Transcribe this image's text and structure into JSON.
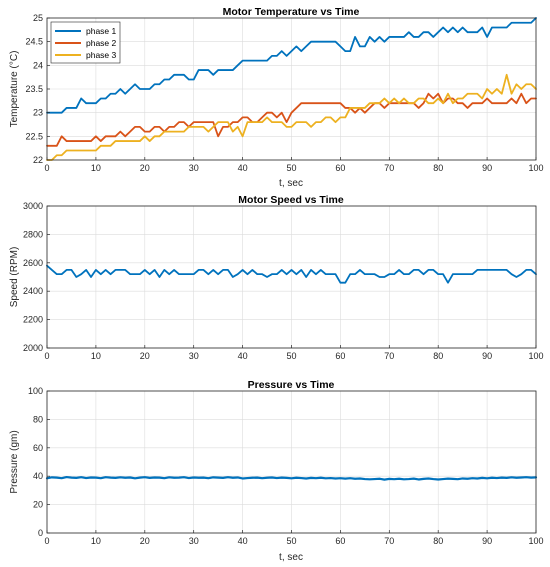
{
  "chart_data": [
    {
      "type": "line",
      "title": "Motor Temperature vs Time",
      "xlabel": "t, sec",
      "ylabel": "Temperature (°C)",
      "xlim": [
        0,
        100
      ],
      "ylim": [
        22,
        25
      ],
      "xticks": [
        0,
        10,
        20,
        30,
        40,
        50,
        60,
        70,
        80,
        90,
        100
      ],
      "yticks": [
        22,
        22.5,
        23,
        23.5,
        24,
        24.5,
        25
      ],
      "ytick_labels": [
        "22",
        "22.5",
        "23",
        "23.5",
        "24",
        "24.5",
        "25"
      ],
      "grid": true,
      "legend": "top-left",
      "series": [
        {
          "name": "phase 1",
          "color": "#0072BD",
          "values": [
            23.0,
            23.0,
            23.0,
            23.0,
            23.1,
            23.1,
            23.1,
            23.3,
            23.2,
            23.2,
            23.2,
            23.3,
            23.3,
            23.4,
            23.4,
            23.5,
            23.4,
            23.5,
            23.6,
            23.5,
            23.5,
            23.5,
            23.6,
            23.6,
            23.7,
            23.7,
            23.8,
            23.8,
            23.8,
            23.7,
            23.7,
            23.9,
            23.9,
            23.9,
            23.8,
            23.9,
            23.9,
            23.9,
            23.9,
            24.0,
            24.1,
            24.1,
            24.1,
            24.1,
            24.1,
            24.1,
            24.2,
            24.2,
            24.3,
            24.2,
            24.3,
            24.4,
            24.3,
            24.4,
            24.5,
            24.5,
            24.5,
            24.5,
            24.5,
            24.5,
            24.4,
            24.3,
            24.3,
            24.6,
            24.4,
            24.4,
            24.6,
            24.5,
            24.6,
            24.5,
            24.6,
            24.6,
            24.6,
            24.6,
            24.7,
            24.6,
            24.6,
            24.7,
            24.7,
            24.6,
            24.7,
            24.8,
            24.7,
            24.8,
            24.7,
            24.8,
            24.7,
            24.7,
            24.7,
            24.8,
            24.6,
            24.8,
            24.8,
            24.8,
            24.8,
            24.9,
            24.9,
            24.9,
            24.9,
            24.9,
            25.0
          ]
        },
        {
          "name": "phase 2",
          "color": "#D95319",
          "values": [
            22.3,
            22.3,
            22.3,
            22.5,
            22.4,
            22.4,
            22.4,
            22.4,
            22.4,
            22.4,
            22.5,
            22.4,
            22.5,
            22.5,
            22.5,
            22.6,
            22.5,
            22.6,
            22.7,
            22.7,
            22.6,
            22.6,
            22.7,
            22.7,
            22.6,
            22.7,
            22.7,
            22.8,
            22.8,
            22.7,
            22.8,
            22.8,
            22.8,
            22.8,
            22.8,
            22.5,
            22.7,
            22.7,
            22.8,
            22.8,
            22.9,
            22.9,
            22.8,
            22.8,
            22.9,
            23.0,
            23.0,
            22.9,
            23.0,
            22.8,
            23.0,
            23.1,
            23.2,
            23.2,
            23.2,
            23.2,
            23.2,
            23.2,
            23.2,
            23.2,
            23.2,
            23.1,
            23.1,
            23.0,
            23.1,
            23.0,
            23.1,
            23.2,
            23.2,
            23.1,
            23.2,
            23.2,
            23.2,
            23.2,
            23.2,
            23.2,
            23.1,
            23.2,
            23.4,
            23.3,
            23.4,
            23.2,
            23.3,
            23.3,
            23.2,
            23.2,
            23.1,
            23.2,
            23.2,
            23.2,
            23.3,
            23.2,
            23.2,
            23.2,
            23.2,
            23.3,
            23.2,
            23.4,
            23.2,
            23.3,
            23.3
          ]
        },
        {
          "name": "phase 3",
          "color": "#EDB120",
          "values": [
            22.0,
            22.0,
            22.1,
            22.1,
            22.2,
            22.2,
            22.2,
            22.2,
            22.2,
            22.2,
            22.2,
            22.3,
            22.3,
            22.3,
            22.4,
            22.4,
            22.4,
            22.4,
            22.4,
            22.4,
            22.5,
            22.4,
            22.5,
            22.5,
            22.6,
            22.6,
            22.6,
            22.6,
            22.6,
            22.7,
            22.7,
            22.7,
            22.7,
            22.6,
            22.7,
            22.8,
            22.8,
            22.8,
            22.6,
            22.7,
            22.5,
            22.8,
            22.8,
            22.8,
            22.8,
            22.9,
            22.8,
            22.8,
            22.8,
            22.7,
            22.7,
            22.8,
            22.8,
            22.8,
            22.7,
            22.8,
            22.8,
            22.9,
            22.9,
            22.8,
            22.9,
            22.9,
            23.1,
            23.1,
            23.1,
            23.1,
            23.2,
            23.2,
            23.2,
            23.3,
            23.2,
            23.3,
            23.2,
            23.3,
            23.2,
            23.2,
            23.3,
            23.3,
            23.2,
            23.2,
            23.3,
            23.2,
            23.4,
            23.2,
            23.3,
            23.3,
            23.4,
            23.4,
            23.4,
            23.3,
            23.5,
            23.4,
            23.5,
            23.4,
            23.8,
            23.4,
            23.6,
            23.5,
            23.6,
            23.6,
            23.5
          ]
        }
      ]
    },
    {
      "type": "line",
      "title": "Motor Speed vs Time",
      "xlabel": "",
      "ylabel": "Speed (RPM)",
      "xlim": [
        0,
        100
      ],
      "ylim": [
        2000,
        3000
      ],
      "xticks": [
        0,
        10,
        20,
        30,
        40,
        50,
        60,
        70,
        80,
        90,
        100
      ],
      "yticks": [
        2000,
        2200,
        2400,
        2600,
        2800,
        3000
      ],
      "ytick_labels": [
        "2000",
        "2200",
        "2400",
        "2600",
        "2800",
        "3000"
      ],
      "grid": true,
      "series": [
        {
          "color": "#0072BD",
          "values": [
            2580,
            2550,
            2520,
            2520,
            2550,
            2550,
            2500,
            2520,
            2550,
            2500,
            2550,
            2520,
            2550,
            2520,
            2550,
            2550,
            2550,
            2520,
            2520,
            2520,
            2550,
            2520,
            2550,
            2500,
            2550,
            2520,
            2550,
            2520,
            2520,
            2520,
            2520,
            2550,
            2550,
            2520,
            2550,
            2520,
            2550,
            2550,
            2500,
            2520,
            2550,
            2520,
            2550,
            2520,
            2520,
            2500,
            2520,
            2520,
            2550,
            2520,
            2550,
            2520,
            2550,
            2500,
            2550,
            2520,
            2550,
            2520,
            2520,
            2520,
            2460,
            2460,
            2520,
            2520,
            2550,
            2520,
            2520,
            2520,
            2500,
            2500,
            2520,
            2520,
            2550,
            2520,
            2520,
            2550,
            2550,
            2520,
            2550,
            2550,
            2520,
            2520,
            2460,
            2520,
            2520,
            2520,
            2520,
            2520,
            2550,
            2550,
            2550,
            2550,
            2550,
            2550,
            2550,
            2520,
            2500,
            2520,
            2550,
            2550,
            2520
          ]
        }
      ]
    },
    {
      "type": "line",
      "title": "Pressure vs Time",
      "xlabel": "t, sec",
      "ylabel": "Pressure (gm)",
      "xlim": [
        0,
        100
      ],
      "ylim": [
        0,
        100
      ],
      "xticks": [
        0,
        10,
        20,
        30,
        40,
        50,
        60,
        70,
        80,
        90,
        100
      ],
      "yticks": [
        0,
        20,
        40,
        60,
        80,
        100
      ],
      "ytick_labels": [
        "0",
        "20",
        "40",
        "60",
        "80",
        "100"
      ],
      "grid": true,
      "series": [
        {
          "color": "#0072BD",
          "values": [
            38.5,
            39.2,
            39.0,
            38.6,
            39.4,
            39.0,
            38.8,
            39.3,
            38.7,
            39.1,
            39.0,
            38.6,
            39.3,
            39.0,
            38.8,
            39.2,
            38.9,
            39.1,
            38.5,
            39.0,
            39.3,
            38.8,
            39.1,
            39.0,
            38.6,
            39.2,
            38.9,
            39.0,
            39.3,
            38.7,
            39.1,
            38.9,
            39.0,
            38.6,
            39.2,
            39.0,
            38.8,
            39.3,
            38.9,
            39.1,
            38.4,
            38.7,
            38.9,
            39.0,
            38.6,
            38.9,
            39.1,
            38.7,
            39.0,
            38.8,
            38.5,
            38.9,
            38.7,
            38.4,
            38.8,
            38.6,
            38.9,
            38.5,
            38.7,
            38.4,
            38.6,
            38.3,
            38.6,
            38.2,
            38.4,
            38.0,
            37.8,
            38.0,
            38.2,
            37.6,
            38.1,
            37.9,
            38.2,
            37.8,
            38.0,
            38.3,
            37.7,
            38.1,
            38.4,
            38.0,
            37.7,
            38.0,
            38.3,
            38.1,
            37.9,
            38.4,
            38.2,
            38.6,
            38.4,
            38.8,
            38.5,
            38.9,
            38.7,
            39.0,
            38.8,
            39.2,
            38.9,
            39.1,
            39.3,
            39.0,
            39.2
          ]
        }
      ]
    }
  ]
}
